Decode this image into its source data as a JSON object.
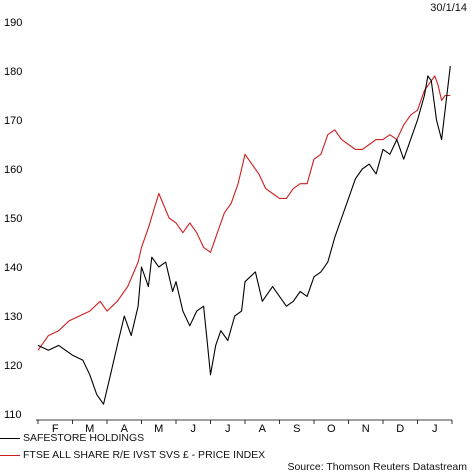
{
  "date_label": "30/1/14",
  "source": "Source: Thomson Reuters Datastream",
  "chart_data": {
    "type": "line",
    "title": "",
    "xlabel": "",
    "ylabel": "",
    "ylim": [
      110,
      190
    ],
    "yticks": [
      110,
      120,
      130,
      140,
      150,
      160,
      170,
      180,
      190
    ],
    "x_tick_labels": [
      "F",
      "M",
      "A",
      "M",
      "J",
      "J",
      "A",
      "S",
      "O",
      "N",
      "D",
      "J"
    ],
    "x_range": [
      0,
      12
    ],
    "grid": false,
    "legend_placement": "bottom-left",
    "series": [
      {
        "name": "SAFESTORE HOLDINGS",
        "color": "#000000",
        "x": [
          0,
          0.3,
          0.6,
          1.0,
          1.3,
          1.5,
          1.7,
          1.9,
          2.1,
          2.3,
          2.5,
          2.7,
          2.9,
          3.0,
          3.2,
          3.3,
          3.5,
          3.7,
          3.9,
          4.0,
          4.2,
          4.4,
          4.6,
          4.8,
          4.9,
          5.0,
          5.15,
          5.3,
          5.5,
          5.7,
          5.9,
          6.0,
          6.3,
          6.5,
          6.8,
          7.0,
          7.2,
          7.4,
          7.6,
          7.8,
          8.0,
          8.2,
          8.4,
          8.6,
          8.8,
          9.0,
          9.2,
          9.4,
          9.6,
          9.8,
          10.0,
          10.2,
          10.4,
          10.6,
          10.8,
          11.0,
          11.2,
          11.3,
          11.4,
          11.55,
          11.7,
          11.8,
          11.95
        ],
        "values": [
          124,
          123,
          124,
          122,
          121,
          118,
          114,
          112,
          118,
          124,
          130,
          126,
          132,
          140,
          136,
          142,
          140,
          141,
          135,
          137,
          131,
          128,
          131,
          132,
          125,
          118,
          124,
          127,
          125,
          130,
          131,
          137,
          139,
          133,
          136,
          134,
          132,
          133,
          135,
          134,
          138,
          139,
          141,
          146,
          150,
          154,
          158,
          160,
          161,
          159,
          164,
          163,
          166,
          162,
          166,
          170,
          175,
          179,
          178,
          170,
          166,
          172,
          181
        ]
      },
      {
        "name": "FTSE ALL SHARE R/E IVST SVS £ - PRICE INDEX",
        "color": "#cc1f1f",
        "x": [
          0,
          0.3,
          0.6,
          0.9,
          1.2,
          1.5,
          1.8,
          2.0,
          2.3,
          2.6,
          2.9,
          3.0,
          3.2,
          3.5,
          3.8,
          4.0,
          4.2,
          4.4,
          4.6,
          4.8,
          5.0,
          5.2,
          5.4,
          5.6,
          5.8,
          6.0,
          6.2,
          6.4,
          6.6,
          6.8,
          7.0,
          7.2,
          7.4,
          7.6,
          7.8,
          8.0,
          8.2,
          8.4,
          8.6,
          8.8,
          9.0,
          9.2,
          9.4,
          9.6,
          9.8,
          10.0,
          10.2,
          10.4,
          10.6,
          10.8,
          11.0,
          11.2,
          11.4,
          11.5,
          11.6,
          11.7,
          11.8,
          11.95
        ],
        "values": [
          123,
          126,
          127,
          129,
          130,
          131,
          133,
          131,
          133,
          136,
          141,
          144,
          148,
          155,
          150,
          149,
          147,
          149,
          147,
          144,
          143,
          147,
          151,
          153,
          157,
          163,
          161,
          159,
          156,
          155,
          154,
          154,
          156,
          157,
          157,
          162,
          163,
          167,
          168,
          166,
          165,
          164,
          164,
          165,
          166,
          166,
          167,
          166,
          169,
          171,
          172,
          176,
          178,
          179,
          177,
          174,
          175,
          175
        ]
      }
    ]
  }
}
